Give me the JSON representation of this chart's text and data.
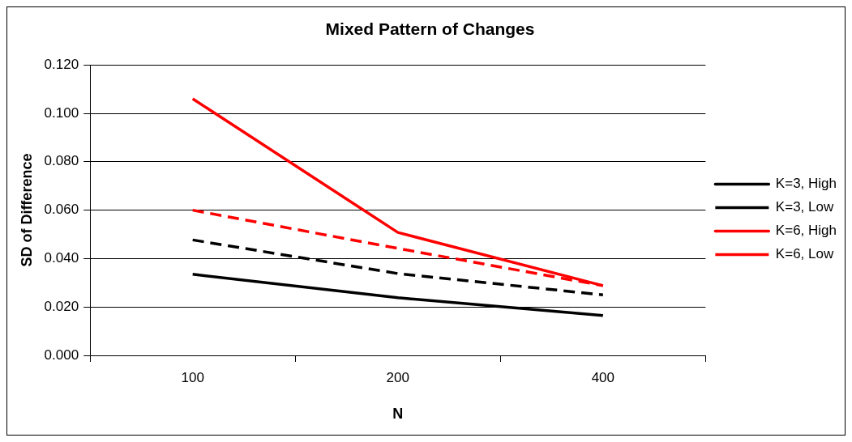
{
  "chart_data": {
    "type": "line",
    "title": "Mixed Pattern of Changes",
    "xlabel": "N",
    "ylabel": "SD of Difference",
    "categories": [
      "100",
      "200",
      "400"
    ],
    "series": [
      {
        "name": "K=3, High",
        "color": "#000000",
        "line_style": "solid",
        "values": [
          0.0335,
          0.0238,
          0.0165
        ]
      },
      {
        "name": "K=3, Low",
        "color": "#000000",
        "line_style": "dashed",
        "values": [
          0.0477,
          0.0338,
          0.025
        ]
      },
      {
        "name": "K=6, High",
        "color": "#ff0000",
        "line_style": "solid",
        "values": [
          0.106,
          0.0508,
          0.0288
        ]
      },
      {
        "name": "K=6, Low",
        "color": "#ff0000",
        "line_style": "dashed",
        "values": [
          0.06,
          0.0442,
          0.0288
        ]
      }
    ],
    "ylim": [
      0,
      0.12
    ],
    "yticks": [
      {
        "value": 0,
        "label": "0.000"
      },
      {
        "value": 0.02,
        "label": "0.020"
      },
      {
        "value": 0.04,
        "label": "0.040"
      },
      {
        "value": 0.06,
        "label": "0.060"
      },
      {
        "value": 0.08,
        "label": "0.080"
      },
      {
        "value": 0.1,
        "label": "0.100"
      },
      {
        "value": 0.12,
        "label": "0.120"
      }
    ],
    "grid": "y",
    "legend": "right",
    "marker": "none"
  }
}
